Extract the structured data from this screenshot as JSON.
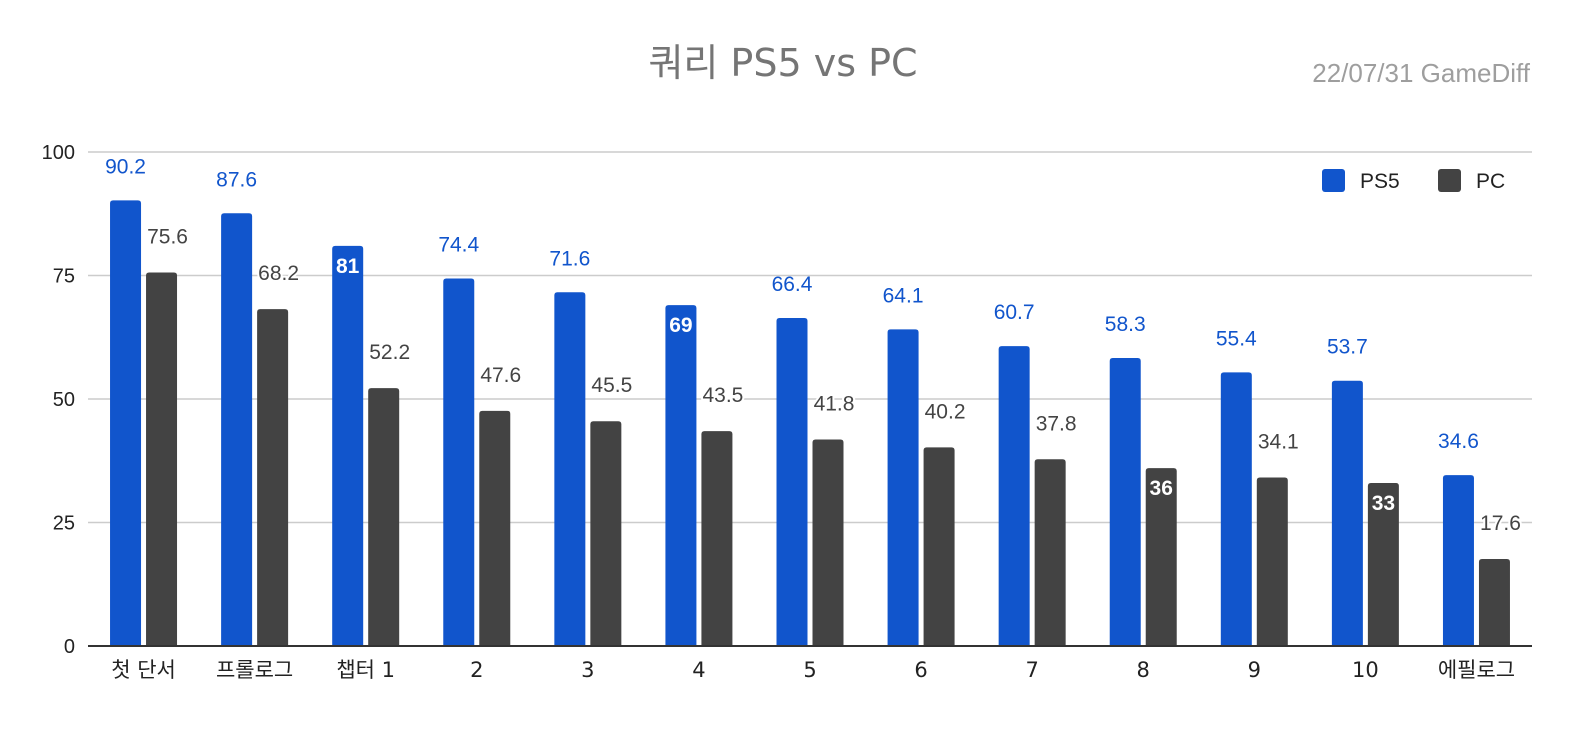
{
  "chart_data": {
    "type": "bar",
    "title": "쿼리 PS5 vs PC",
    "watermark": "22/07/31  GameDiff",
    "categories": [
      "첫 단서",
      "프롤로그",
      "챕터 1",
      "2",
      "3",
      "4",
      "5",
      "6",
      "7",
      "8",
      "9",
      "10",
      "에필로그"
    ],
    "series": [
      {
        "name": "PS5",
        "color": "#1155cc",
        "values": [
          90.2,
          87.6,
          81,
          74.4,
          71.6,
          69,
          66.4,
          64.1,
          60.7,
          58.3,
          55.4,
          53.7,
          34.6
        ],
        "labels_inside": [
          false,
          false,
          true,
          false,
          false,
          true,
          false,
          false,
          false,
          false,
          false,
          false,
          false
        ]
      },
      {
        "name": "PC",
        "color": "#434343",
        "values": [
          75.6,
          68.2,
          52.2,
          47.6,
          45.5,
          43.5,
          41.8,
          40.2,
          37.8,
          36,
          34.1,
          33,
          17.6
        ],
        "labels_inside": [
          false,
          false,
          false,
          false,
          false,
          false,
          false,
          false,
          false,
          true,
          false,
          true,
          false
        ]
      }
    ],
    "yticks": [
      0,
      25,
      50,
      75,
      100
    ],
    "ylim": [
      0,
      100
    ],
    "grid": true,
    "legend_position": "top-right"
  }
}
